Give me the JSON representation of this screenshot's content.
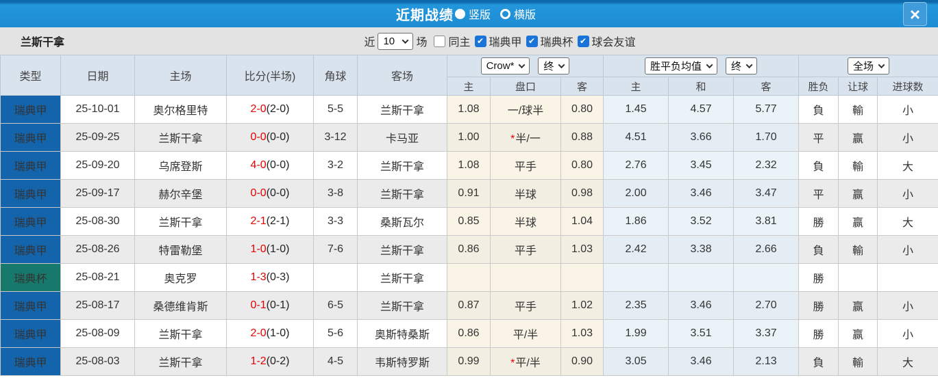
{
  "titlebar": {
    "title": "近期战绩",
    "orientation_options": [
      {
        "label": "竖版",
        "selected": true
      },
      {
        "label": "横版",
        "selected": false
      }
    ],
    "close_glyph": "×"
  },
  "filterbar": {
    "team": "兰斯干拿",
    "recent_label": "近",
    "recent_value": "10",
    "recent_suffix": "场",
    "checkboxes": [
      {
        "label": "同主",
        "checked": false
      },
      {
        "label": "瑞典甲",
        "checked": true
      },
      {
        "label": "瑞典杯",
        "checked": true
      },
      {
        "label": "球会友谊",
        "checked": true
      }
    ]
  },
  "table": {
    "main_headers": [
      "类型",
      "日期",
      "主场",
      "比分(半场)",
      "角球",
      "客场"
    ],
    "selects": {
      "bookmaker": "Crow*",
      "bookmaker_time": "终",
      "average": "胜平负均值",
      "average_time": "终",
      "scope": "全场"
    },
    "sub_headers": [
      "主",
      "盘口",
      "客",
      "主",
      "和",
      "客",
      "胜负",
      "让球",
      "进球数"
    ],
    "rows": [
      {
        "type": "瑞典甲",
        "type_kind": "league",
        "date": "25-10-01",
        "home": "奥尔格里特",
        "home_team": false,
        "score": "2-0",
        "half": "(2-0)",
        "corners": "5-5",
        "away": "兰斯干拿",
        "away_team": true,
        "odds_home": "1.08",
        "handicap": "一/球半",
        "handicap_star": false,
        "odds_away": "0.80",
        "avg_home": "1.45",
        "avg_draw": "4.57",
        "avg_away": "5.77",
        "result": {
          "text": "負",
          "color": "green"
        },
        "handicap_result": {
          "text": "輸",
          "color": "green"
        },
        "goals": {
          "text": "小",
          "color": "green"
        }
      },
      {
        "type": "瑞典甲",
        "type_kind": "league",
        "date": "25-09-25",
        "home": "兰斯干拿",
        "home_team": true,
        "score": "0-0",
        "half": "(0-0)",
        "corners": "3-12",
        "away": "卡马亚",
        "away_team": false,
        "odds_home": "1.00",
        "handicap": "半/一",
        "handicap_star": true,
        "odds_away": "0.88",
        "avg_home": "4.51",
        "avg_draw": "3.66",
        "avg_away": "1.70",
        "result": {
          "text": "平",
          "color": "blue"
        },
        "handicap_result": {
          "text": "赢",
          "color": "red"
        },
        "goals": {
          "text": "小",
          "color": "green"
        }
      },
      {
        "type": "瑞典甲",
        "type_kind": "league",
        "date": "25-09-20",
        "home": "乌席登斯",
        "home_team": false,
        "score": "4-0",
        "half": "(0-0)",
        "corners": "3-2",
        "away": "兰斯干拿",
        "away_team": true,
        "odds_home": "1.08",
        "handicap": "平手",
        "handicap_star": false,
        "odds_away": "0.80",
        "avg_home": "2.76",
        "avg_draw": "3.45",
        "avg_away": "2.32",
        "result": {
          "text": "負",
          "color": "green"
        },
        "handicap_result": {
          "text": "輸",
          "color": "green"
        },
        "goals": {
          "text": "大",
          "color": "red"
        }
      },
      {
        "type": "瑞典甲",
        "type_kind": "league",
        "date": "25-09-17",
        "home": "赫尔辛堡",
        "home_team": false,
        "score": "0-0",
        "half": "(0-0)",
        "corners": "3-8",
        "away": "兰斯干拿",
        "away_team": true,
        "odds_home": "0.91",
        "handicap": "半球",
        "handicap_star": false,
        "odds_away": "0.98",
        "avg_home": "2.00",
        "avg_draw": "3.46",
        "avg_away": "3.47",
        "result": {
          "text": "平",
          "color": "blue"
        },
        "handicap_result": {
          "text": "赢",
          "color": "red"
        },
        "goals": {
          "text": "小",
          "color": "green"
        }
      },
      {
        "type": "瑞典甲",
        "type_kind": "league",
        "date": "25-08-30",
        "home": "兰斯干拿",
        "home_team": true,
        "score": "2-1",
        "half": "(2-1)",
        "corners": "3-3",
        "away": "桑斯瓦尔",
        "away_team": false,
        "odds_home": "0.85",
        "handicap": "半球",
        "handicap_star": false,
        "odds_away": "1.04",
        "avg_home": "1.86",
        "avg_draw": "3.52",
        "avg_away": "3.81",
        "result": {
          "text": "勝",
          "color": "red"
        },
        "handicap_result": {
          "text": "赢",
          "color": "red"
        },
        "goals": {
          "text": "大",
          "color": "red"
        }
      },
      {
        "type": "瑞典甲",
        "type_kind": "league",
        "date": "25-08-26",
        "home": "特雷勒堡",
        "home_team": false,
        "score": "1-0",
        "half": "(1-0)",
        "corners": "7-6",
        "away": "兰斯干拿",
        "away_team": true,
        "odds_home": "0.86",
        "handicap": "平手",
        "handicap_star": false,
        "odds_away": "1.03",
        "avg_home": "2.42",
        "avg_draw": "3.38",
        "avg_away": "2.66",
        "result": {
          "text": "負",
          "color": "green"
        },
        "handicap_result": {
          "text": "輸",
          "color": "green"
        },
        "goals": {
          "text": "小",
          "color": "green"
        }
      },
      {
        "type": "瑞典杯",
        "type_kind": "cup",
        "date": "25-08-21",
        "home": "奥克罗",
        "home_team": false,
        "score": "1-3",
        "half": "(0-3)",
        "corners": "",
        "away": "兰斯干拿",
        "away_team": true,
        "odds_home": "",
        "handicap": "",
        "handicap_star": false,
        "odds_away": "",
        "avg_home": "",
        "avg_draw": "",
        "avg_away": "",
        "result": {
          "text": "勝",
          "color": "red"
        },
        "handicap_result": {
          "text": "",
          "color": "none"
        },
        "goals": {
          "text": "",
          "color": "none"
        }
      },
      {
        "type": "瑞典甲",
        "type_kind": "league",
        "date": "25-08-17",
        "home": "桑德维肯斯",
        "home_team": false,
        "score": "0-1",
        "half": "(0-1)",
        "corners": "6-5",
        "away": "兰斯干拿",
        "away_team": true,
        "odds_home": "0.87",
        "handicap": "平手",
        "handicap_star": false,
        "odds_away": "1.02",
        "avg_home": "2.35",
        "avg_draw": "3.46",
        "avg_away": "2.70",
        "result": {
          "text": "勝",
          "color": "red"
        },
        "handicap_result": {
          "text": "赢",
          "color": "red"
        },
        "goals": {
          "text": "小",
          "color": "green"
        }
      },
      {
        "type": "瑞典甲",
        "type_kind": "league",
        "date": "25-08-09",
        "home": "兰斯干拿",
        "home_team": true,
        "score": "2-0",
        "half": "(1-0)",
        "corners": "5-6",
        "away": "奥斯特桑斯",
        "away_team": false,
        "odds_home": "0.86",
        "handicap": "平/半",
        "handicap_star": false,
        "odds_away": "1.03",
        "avg_home": "1.99",
        "avg_draw": "3.51",
        "avg_away": "3.37",
        "result": {
          "text": "勝",
          "color": "red"
        },
        "handicap_result": {
          "text": "赢",
          "color": "red"
        },
        "goals": {
          "text": "小",
          "color": "green"
        }
      },
      {
        "type": "瑞典甲",
        "type_kind": "league",
        "date": "25-08-03",
        "home": "兰斯干拿",
        "home_team": true,
        "score": "1-2",
        "half": "(0-2)",
        "corners": "4-5",
        "away": "韦斯特罗斯",
        "away_team": false,
        "odds_home": "0.99",
        "handicap": "平/半",
        "handicap_star": true,
        "odds_away": "0.90",
        "avg_home": "3.05",
        "avg_draw": "3.46",
        "avg_away": "2.13",
        "result": {
          "text": "負",
          "color": "green"
        },
        "handicap_result": {
          "text": "輸",
          "color": "green"
        },
        "goals": {
          "text": "大",
          "color": "red"
        }
      }
    ]
  },
  "colors": {
    "titlebar_blue": "#1d8cd3",
    "league_blue": "#1464ac",
    "cup_teal": "#17796b",
    "team_green": "#3e9247",
    "score_red": "#e60000",
    "win_red": "#e05555",
    "lose_green": "#3a7d44",
    "draw_blue": "#5566dd",
    "checkbox_blue": "#1a73d8",
    "crow_col_bg": "#faf4e6",
    "avg_col_bg": "#e9f3f8"
  }
}
